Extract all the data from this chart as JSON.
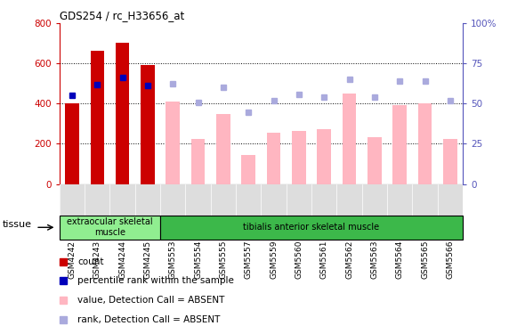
{
  "title": "GDS254 / rc_H33656_at",
  "categories": [
    "GSM4242",
    "GSM4243",
    "GSM4244",
    "GSM4245",
    "GSM5553",
    "GSM5554",
    "GSM5555",
    "GSM5557",
    "GSM5559",
    "GSM5560",
    "GSM5561",
    "GSM5562",
    "GSM5563",
    "GSM5564",
    "GSM5565",
    "GSM5566"
  ],
  "red_bars": [
    400,
    660,
    700,
    590,
    0,
    0,
    0,
    0,
    0,
    0,
    0,
    0,
    0,
    0,
    0,
    0
  ],
  "pink_bars": [
    0,
    0,
    0,
    0,
    410,
    225,
    350,
    145,
    255,
    265,
    275,
    450,
    235,
    390,
    400,
    225
  ],
  "blue_squares_left": [
    440,
    495,
    530,
    490,
    0,
    0,
    0,
    0,
    0,
    0,
    0,
    0,
    0,
    0,
    0,
    0
  ],
  "lavender_squares_left": [
    0,
    0,
    0,
    0,
    500,
    405,
    480,
    355,
    415,
    445,
    430,
    520,
    430,
    510,
    510,
    415
  ],
  "tissue_groups": [
    {
      "label": "extraocular skeletal\nmuscle",
      "start": 0,
      "end": 4,
      "color": "#90EE90"
    },
    {
      "label": "tibialis anterior skeletal muscle",
      "start": 4,
      "end": 16,
      "color": "#3CB84A"
    }
  ],
  "ylim_left": [
    0,
    800
  ],
  "ylim_right": [
    0,
    100
  ],
  "yticks_left": [
    0,
    200,
    400,
    600,
    800
  ],
  "yticks_right": [
    0,
    25,
    50,
    75,
    100
  ],
  "bar_width": 0.55,
  "red_color": "#CC0000",
  "pink_color": "#FFB6C1",
  "blue_color": "#0000BB",
  "lavender_color": "#AAAADD",
  "legend_items": [
    {
      "label": "count",
      "color": "#CC0000"
    },
    {
      "label": "percentile rank within the sample",
      "color": "#0000BB"
    },
    {
      "label": "value, Detection Call = ABSENT",
      "color": "#FFB6C1"
    },
    {
      "label": "rank, Detection Call = ABSENT",
      "color": "#AAAADD"
    }
  ]
}
